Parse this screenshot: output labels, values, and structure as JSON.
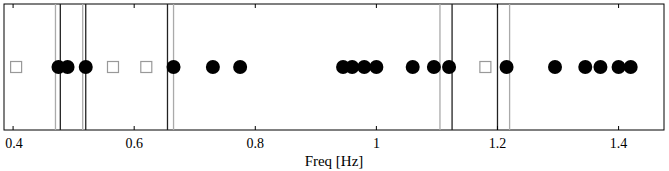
{
  "chart_data": {
    "type": "scatter",
    "x_label": "Freq [Hz]",
    "xlim": [
      0.385,
      1.475
    ],
    "xticks": [
      0.4,
      0.6,
      0.8,
      1,
      1.2,
      1.4
    ],
    "tick_labels": "x",
    "grid": false,
    "series": [
      {
        "type": "vline",
        "color": "#aaaaaa",
        "line_style": "solid",
        "x": [
          0.47,
          0.515,
          0.665,
          1.105,
          1.22
        ]
      },
      {
        "type": "vline",
        "color": "#222222",
        "line_style": "solid",
        "x": [
          0.478,
          0.52,
          0.655,
          1.125,
          1.2
        ]
      },
      {
        "type": "scatter",
        "marker": "square",
        "color": "#999999",
        "x": [
          0.405,
          0.565,
          0.62,
          1.18
        ]
      },
      {
        "type": "scatter",
        "marker": "circle",
        "color": "#000000",
        "x": [
          0.475,
          0.49,
          0.52,
          0.665,
          0.73,
          0.775,
          0.945,
          0.96,
          0.98,
          1.0,
          1.06,
          1.095,
          1.12,
          1.215,
          1.295,
          1.345,
          1.37,
          1.4,
          1.42
        ]
      }
    ]
  }
}
